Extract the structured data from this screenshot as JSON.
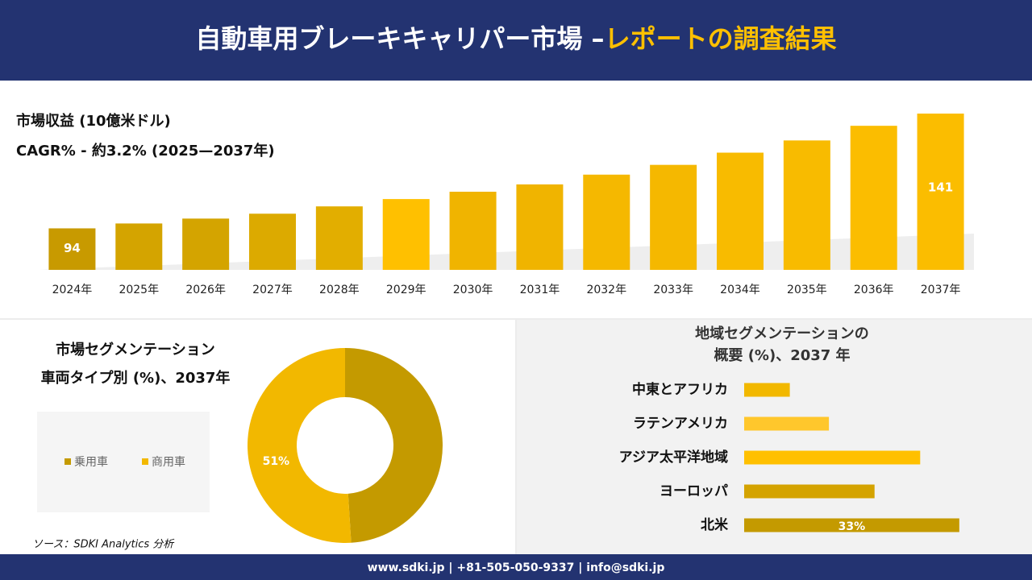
{
  "header": {
    "title_main": "自動車用ブレーキキャリパー市場 –",
    "title_highlight": "レポートの調査結果"
  },
  "chart_data": [
    {
      "type": "bar",
      "title": "市場収益 (10億米ドル)",
      "subtitle": "CAGR% - 約3.2% (2025—2037年)",
      "categories": [
        "2024年",
        "2025年",
        "2026年",
        "2027年",
        "2028年",
        "2029年",
        "2030年",
        "2031年",
        "2032年",
        "2033年",
        "2034年",
        "2035年",
        "2036年",
        "2037年"
      ],
      "values": [
        94,
        96,
        98,
        100,
        103,
        106,
        109,
        112,
        116,
        120,
        125,
        130,
        136,
        141
      ],
      "colors": [
        "#c89a00",
        "#d4a400",
        "#d4a400",
        "#dcaa00",
        "#e2ae00",
        "#ffc000",
        "#f0b400",
        "#f0b400",
        "#f5b800",
        "#f5b800",
        "#f8bb00",
        "#f8bb00",
        "#fbbd00",
        "#fbbd00"
      ],
      "ylim": [
        77,
        141
      ]
    },
    {
      "type": "donut",
      "title": [
        "市場セグメンテーション",
        "車両タイプ別 (%)、2037年"
      ],
      "categories": [
        "乗用車",
        "商用車"
      ],
      "values": [
        49,
        51
      ],
      "value_labels": [
        null,
        "51%"
      ],
      "colors": [
        "#c49a00",
        "#f2b800"
      ]
    },
    {
      "type": "bar",
      "orientation": "horizontal",
      "title": [
        "地域セグメンテーションの",
        "概要 (%)、2037 年"
      ],
      "categories": [
        "中東とアフリカ",
        "ラテンアメリカ",
        "アジア太平洋地域",
        "ヨーロッパ",
        "北米"
      ],
      "values": [
        7,
        13,
        27,
        20,
        33
      ],
      "value_labels": [
        null,
        null,
        null,
        null,
        "33%"
      ],
      "colors": [
        "#f2b800",
        "#ffc72c",
        "#ffc000",
        "#d4a300",
        "#c49a00"
      ],
      "xlim": [
        0,
        35
      ]
    }
  ],
  "footer": {
    "source": "ソース：SDKI Analytics 分析",
    "contact": "www.sdki.jp | +81-505-050-9337 | info@sdki.jp"
  }
}
